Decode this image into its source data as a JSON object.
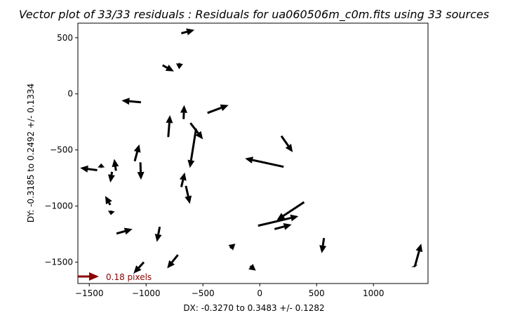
{
  "chart_data": {
    "type": "quiver",
    "title": "Vector plot of 33/33 residuals : Residuals for ua060506m_c0m.fits using 33 sources",
    "xlabel": "DX: -0.3270 to 0.3483 +/- 0.1282",
    "ylabel": "DY: -0.3185 to 0.2492 +/- 0.1334",
    "xlim": [
      -1600,
      1480
    ],
    "ylim": [
      -1690,
      630
    ],
    "xticks": [
      -1500,
      -1000,
      -500,
      0,
      500,
      1000
    ],
    "yticks": [
      -1500,
      -1000,
      -500,
      0,
      500
    ],
    "grid": false,
    "arrow_color": "#000000",
    "key": {
      "label": "0.18 pixels",
      "color": "#8b0000"
    },
    "vectors": [
      {
        "x0": -690,
        "y0": 540,
        "x1": -575,
        "y1": 570
      },
      {
        "x0": -855,
        "y0": 255,
        "x1": -755,
        "y1": 200
      },
      {
        "x0": -705,
        "y0": 275,
        "x1": -710,
        "y1": 220
      },
      {
        "x0": -1045,
        "y0": -75,
        "x1": -1215,
        "y1": -60
      },
      {
        "x0": -805,
        "y0": -385,
        "x1": -790,
        "y1": -190
      },
      {
        "x0": -670,
        "y0": -225,
        "x1": -665,
        "y1": -100
      },
      {
        "x0": -610,
        "y0": -260,
        "x1": -500,
        "y1": -405
      },
      {
        "x0": -560,
        "y0": -310,
        "x1": -615,
        "y1": -660
      },
      {
        "x0": -460,
        "y0": -170,
        "x1": -275,
        "y1": -100
      },
      {
        "x0": 190,
        "y0": -375,
        "x1": 290,
        "y1": -520
      },
      {
        "x0": 210,
        "y0": -650,
        "x1": -130,
        "y1": -575
      },
      {
        "x0": -1100,
        "y0": -600,
        "x1": -1060,
        "y1": -450
      },
      {
        "x0": -1050,
        "y0": -610,
        "x1": -1045,
        "y1": -765
      },
      {
        "x0": -1265,
        "y0": -685,
        "x1": -1280,
        "y1": -580
      },
      {
        "x0": -1300,
        "y0": -695,
        "x1": -1315,
        "y1": -790
      },
      {
        "x0": -1395,
        "y0": -660,
        "x1": -1395,
        "y1": -620
      },
      {
        "x0": -1430,
        "y0": -680,
        "x1": -1580,
        "y1": -660
      },
      {
        "x0": -690,
        "y0": -830,
        "x1": -660,
        "y1": -700
      },
      {
        "x0": -650,
        "y0": -820,
        "x1": -615,
        "y1": -980
      },
      {
        "x0": -1315,
        "y0": -990,
        "x1": -1360,
        "y1": -910
      },
      {
        "x0": -1305,
        "y0": -1040,
        "x1": -1310,
        "y1": -1080
      },
      {
        "x0": 390,
        "y0": -965,
        "x1": 150,
        "y1": -1125
      },
      {
        "x0": -15,
        "y0": -1175,
        "x1": 340,
        "y1": -1090
      },
      {
        "x0": 130,
        "y0": -1205,
        "x1": 280,
        "y1": -1165
      },
      {
        "x0": -1260,
        "y0": -1245,
        "x1": -1120,
        "y1": -1205
      },
      {
        "x0": -880,
        "y0": -1185,
        "x1": -905,
        "y1": -1320
      },
      {
        "x0": -260,
        "y0": -1375,
        "x1": -215,
        "y1": -1335
      },
      {
        "x0": 565,
        "y0": -1285,
        "x1": 545,
        "y1": -1420
      },
      {
        "x0": 1365,
        "y0": -1535,
        "x1": 1420,
        "y1": -1335
      },
      {
        "x0": -720,
        "y0": -1435,
        "x1": -815,
        "y1": -1555
      },
      {
        "x0": -1020,
        "y0": -1500,
        "x1": -1110,
        "y1": -1600
      },
      {
        "x0": -85,
        "y0": -1535,
        "x1": -35,
        "y1": -1575
      },
      {
        "x0": 1360,
        "y0": -1530,
        "x1": 1365,
        "y1": -1545
      }
    ]
  }
}
